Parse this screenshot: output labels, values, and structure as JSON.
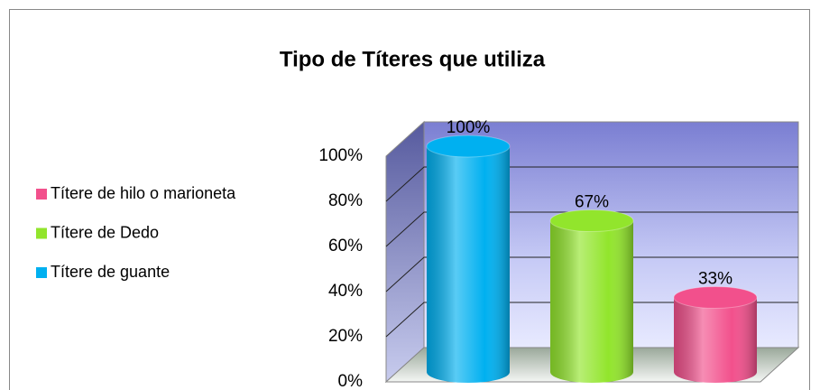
{
  "chart_data": {
    "type": "bar",
    "title": "Tipo de Títeres que utiliza",
    "categories": [
      null
    ],
    "series": [
      {
        "name": "Títere de guante",
        "color": "#00b0f0",
        "values": [
          100
        ],
        "value_labels": [
          "100%"
        ]
      },
      {
        "name": "Títere de Dedo",
        "color": "#92e52c",
        "values": [
          67
        ],
        "value_labels": [
          "67%"
        ]
      },
      {
        "name": "Títere de hilo o marioneta",
        "color": "#f2508c",
        "values": [
          33
        ],
        "value_labels": [
          "33%"
        ]
      }
    ],
    "ylim": [
      0,
      100
    ],
    "yticks": [
      {
        "value": 0,
        "label": "0%"
      },
      {
        "value": 20,
        "label": "20%"
      },
      {
        "value": 40,
        "label": "40%"
      },
      {
        "value": 60,
        "label": "60%"
      },
      {
        "value": 80,
        "label": "80%"
      },
      {
        "value": 100,
        "label": "100%"
      }
    ],
    "grid": true,
    "legend": "left"
  }
}
